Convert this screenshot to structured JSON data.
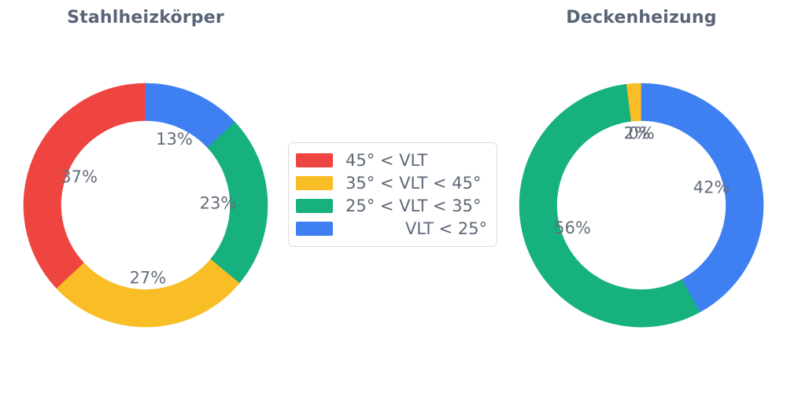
{
  "figure": {
    "background": "#ffffff"
  },
  "palette": {
    "red": "#ee4540",
    "yellow": "#f9be25",
    "green": "#16b17e",
    "blue": "#3e80f2"
  },
  "text_colors": {
    "title": "#5a6478",
    "slice_labels": "#646c7a",
    "legend": "#5e6877",
    "legend_border": "#dbdbdb"
  },
  "legend": {
    "position": "center",
    "items": [
      {
        "label": "45° < VLT",
        "color": "#ee4540"
      },
      {
        "label": "35° < VLT < 45°",
        "color": "#f9be25"
      },
      {
        "label": "25° < VLT < 35°",
        "color": "#16b17e"
      },
      {
        "label": "VLT < 25°",
        "color": "#3e80f2"
      }
    ]
  },
  "chart_data": [
    {
      "type": "pie",
      "title": "Stahlheizkörper",
      "hole": 0.69,
      "direction": "counterclockwise",
      "start_angle_deg": 0,
      "categories": [
        "45° < VLT",
        "35° < VLT < 45°",
        "25° < VLT < 35°",
        "VLT < 25°"
      ],
      "values": [
        37,
        27,
        23,
        13
      ],
      "unit": "%",
      "display_labels": [
        "37%",
        "27%",
        "23%",
        "13%"
      ],
      "colors": [
        "#ee4540",
        "#f9be25",
        "#16b17e",
        "#3e80f2"
      ]
    },
    {
      "type": "pie",
      "title": "Deckenheizung",
      "hole": 0.69,
      "direction": "counterclockwise",
      "start_angle_deg": 0,
      "categories": [
        "45° < VLT",
        "35° < VLT < 45°",
        "25° < VLT < 35°",
        "VLT < 25°"
      ],
      "values": [
        0,
        2,
        56,
        42
      ],
      "unit": "%",
      "display_labels": [
        "0%",
        "2%",
        "56%",
        "42%"
      ],
      "colors": [
        "#ee4540",
        "#f9be25",
        "#16b17e",
        "#3e80f2"
      ]
    }
  ]
}
